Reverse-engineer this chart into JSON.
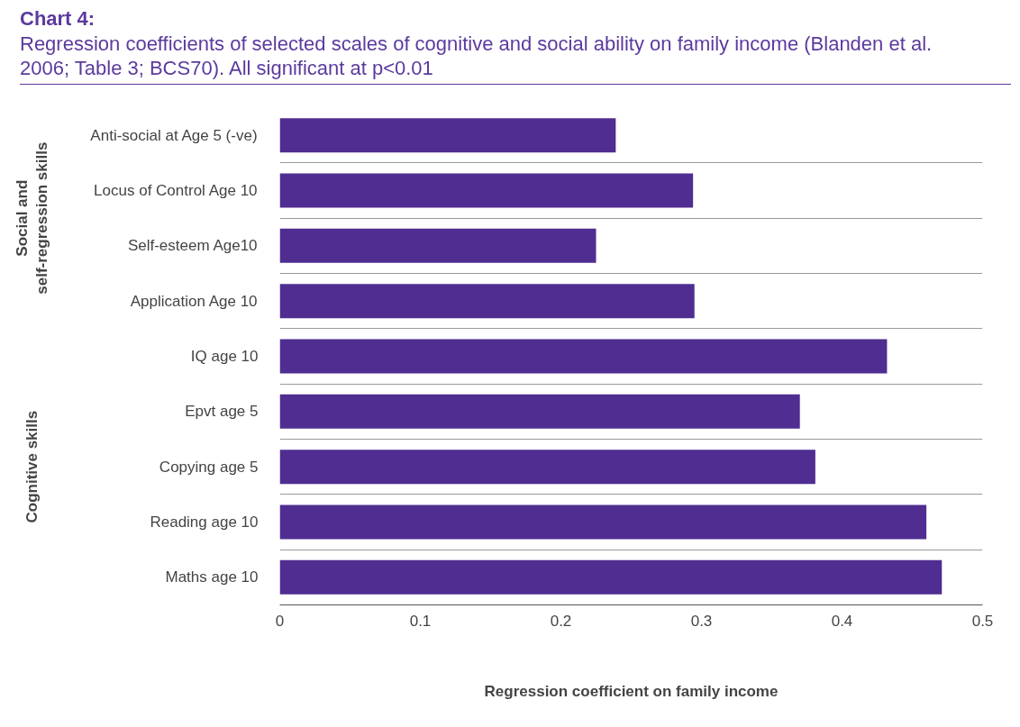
{
  "chart_data": {
    "type": "bar",
    "orientation": "horizontal",
    "title": "Chart 4:",
    "subtitle": "Regression coefficients of selected scales of cognitive and social ability on family income (Blanden et al. 2006; Table 3; BCS70). All significant at p<0.01",
    "xlabel": "Regression coefficient on family income",
    "categories": [
      "Anti-social at Age 5 (-ve)",
      "Locus of Control Age 10",
      "Self-esteem Age10",
      "Application Age 10",
      "IQ age 10",
      "Epvt age 5",
      "Copying age 5",
      "Reading age 10",
      "Maths age 10"
    ],
    "values": [
      0.239,
      0.294,
      0.225,
      0.295,
      0.432,
      0.37,
      0.381,
      0.46,
      0.471
    ],
    "color": "#4f2d91",
    "xlim": [
      0,
      0.5
    ],
    "xticks": [
      0,
      0.1,
      0.2,
      0.3,
      0.4,
      0.5
    ],
    "grid": "y",
    "annotations": [
      "Social and self-regression skills",
      "Cognitive skills"
    ]
  }
}
